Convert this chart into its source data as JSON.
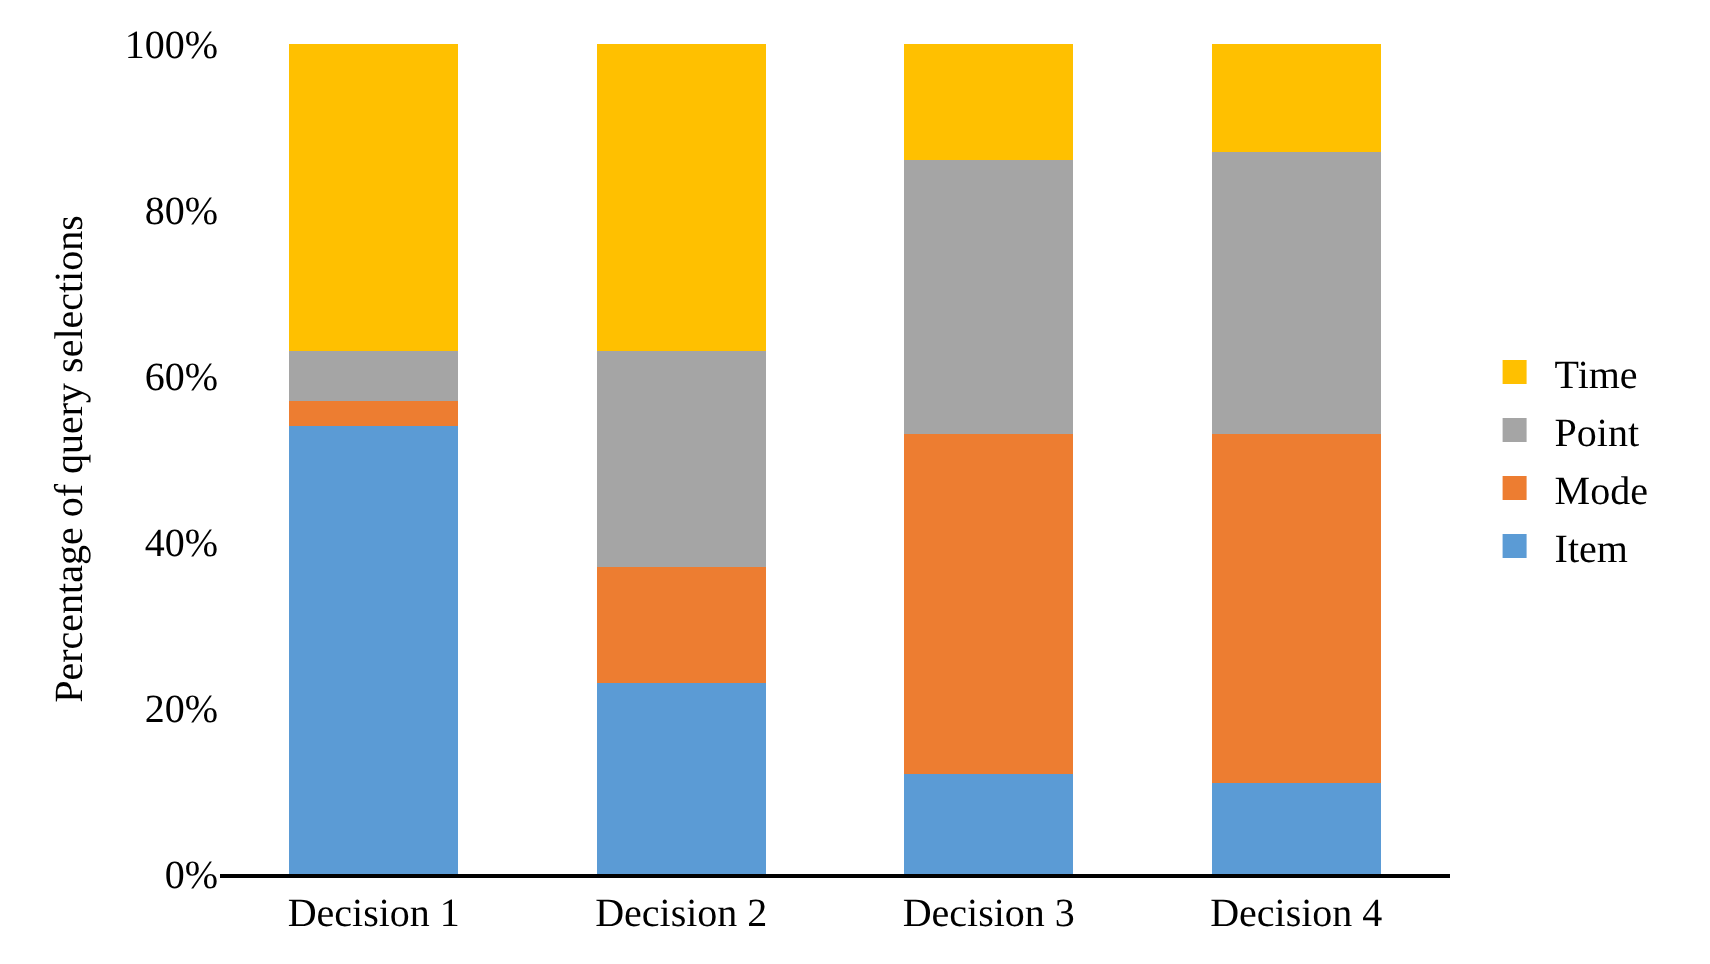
{
  "chart_data": {
    "type": "bar",
    "stacked": true,
    "ylabel": "Percentage of query selections",
    "categories": [
      "Decision 1",
      "Decision 2",
      "Decision 3",
      "Decision 4"
    ],
    "series": [
      {
        "name": "Item",
        "color": "#5b9bd5",
        "values": [
          54,
          23,
          12,
          11
        ]
      },
      {
        "name": "Mode",
        "color": "#ed7d31",
        "values": [
          3,
          14,
          41,
          42
        ]
      },
      {
        "name": "Point",
        "color": "#a5a5a5",
        "values": [
          6,
          26,
          33,
          34
        ]
      },
      {
        "name": "Time",
        "color": "#ffc000",
        "values": [
          37,
          37,
          14,
          13
        ]
      }
    ],
    "ylim": [
      0,
      100
    ],
    "yticks": [
      {
        "value": 0,
        "label": "0%"
      },
      {
        "value": 20,
        "label": "20%"
      },
      {
        "value": 40,
        "label": "40%"
      },
      {
        "value": 60,
        "label": "60%"
      },
      {
        "value": 80,
        "label": "80%"
      },
      {
        "value": 100,
        "label": "100%"
      }
    ],
    "legend": "right"
  }
}
